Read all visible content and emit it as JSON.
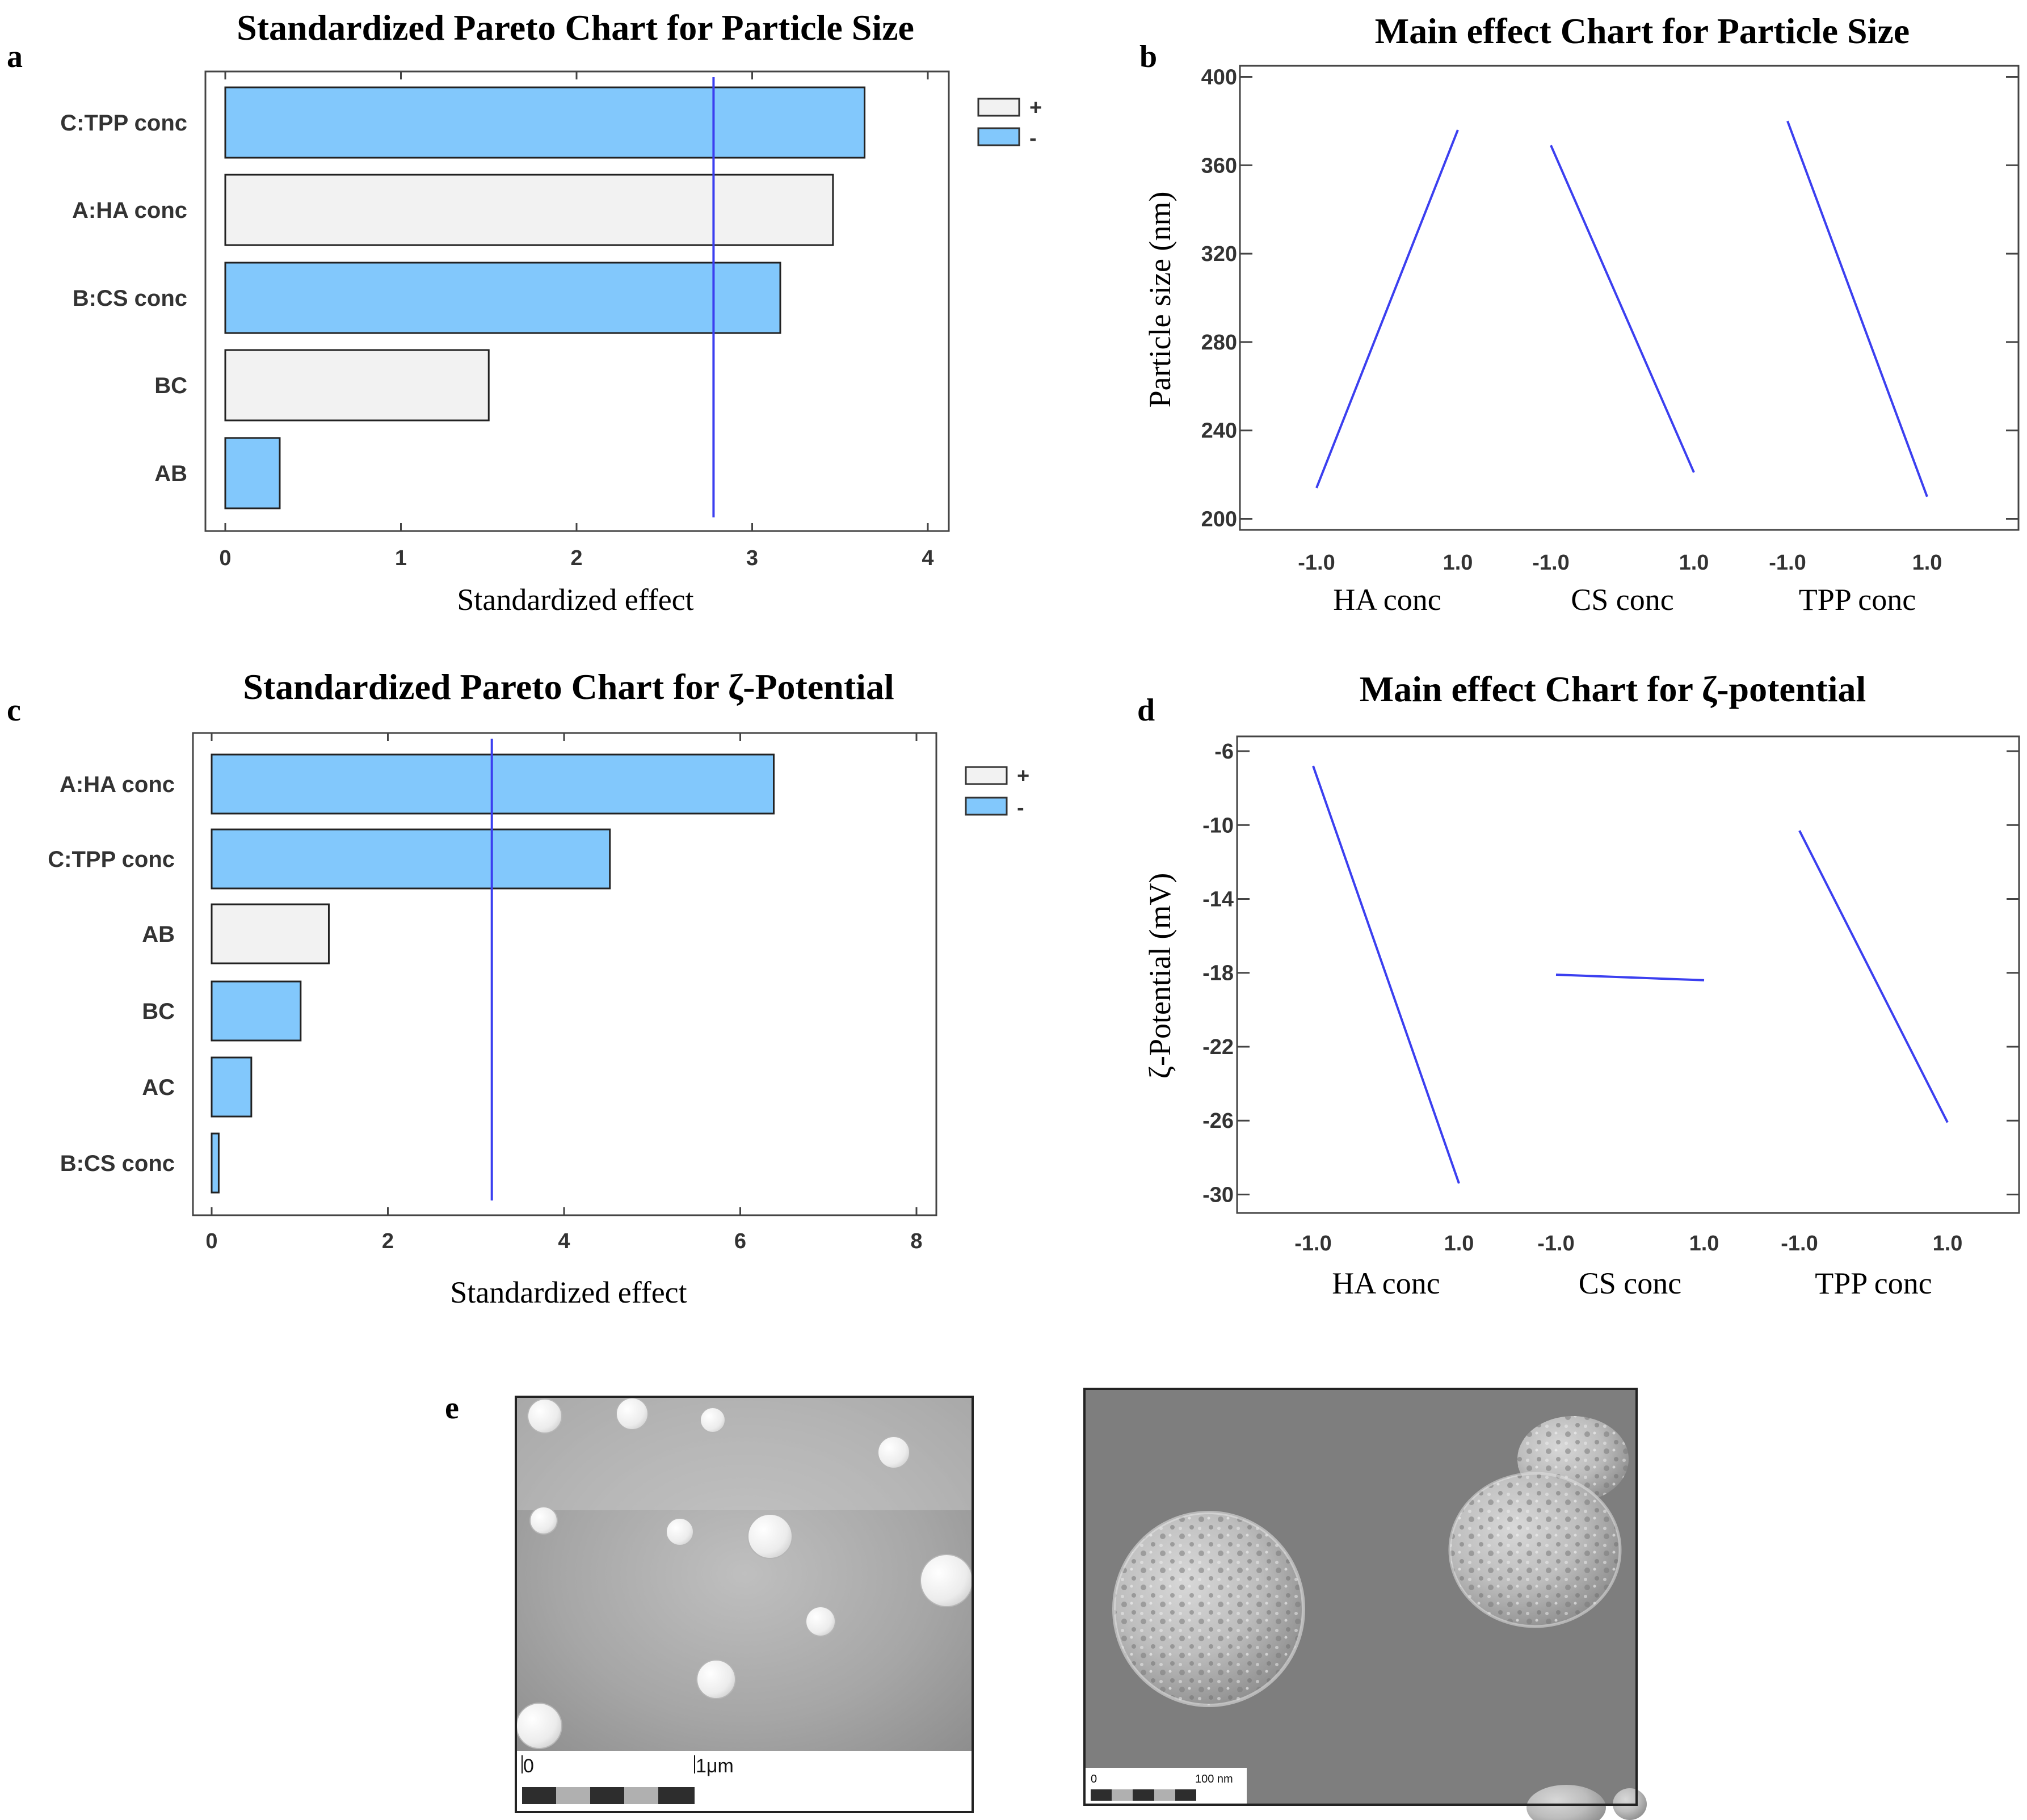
{
  "colors": {
    "neg": "#82c8fc",
    "pos": "#f2f2f2",
    "line": "#3b3ff0",
    "axis": "#444444"
  },
  "panel_labels": {
    "a": "a",
    "b": "b",
    "c": "c",
    "d": "d",
    "e": "e"
  },
  "chart_data": [
    {
      "id": "a",
      "type": "bar",
      "title": "Standardized Pareto Chart for Particle Size",
      "xlabel": "Standardized effect",
      "xlim": [
        0,
        4
      ],
      "xticks": [
        "0",
        "1",
        "2",
        "3",
        "4"
      ],
      "reference_line": 2.78,
      "categories": [
        "C:TPP conc",
        "A:HA conc",
        "B:CS conc",
        "BC",
        "AB"
      ],
      "values": [
        3.64,
        3.46,
        3.16,
        1.5,
        0.31
      ],
      "signs": [
        "-",
        "+",
        "-",
        "+",
        "-"
      ],
      "legend": [
        {
          "sign": "+",
          "label": "+"
        },
        {
          "sign": "-",
          "label": "-"
        }
      ]
    },
    {
      "id": "b",
      "type": "line",
      "title": "Main effect Chart for Particle Size",
      "ylabel": "Particle size (nm)",
      "ylim": [
        195,
        405
      ],
      "yticks": [
        "200",
        "240",
        "280",
        "320",
        "360",
        "400"
      ],
      "factors": [
        {
          "name": "HA conc",
          "x_labels": [
            "-1.0",
            "1.0"
          ],
          "values": [
            214,
            376
          ]
        },
        {
          "name": "CS conc",
          "x_labels": [
            "-1.0",
            "1.0"
          ],
          "values": [
            369,
            221
          ]
        },
        {
          "name": "TPP conc",
          "x_labels": [
            "-1.0",
            "1.0"
          ],
          "values": [
            380,
            210
          ]
        }
      ]
    },
    {
      "id": "c",
      "type": "bar",
      "title": "Standardized Pareto Chart for ζ-Potential",
      "xlabel": "Standardized effect",
      "xlim": [
        0,
        8
      ],
      "xticks": [
        "0",
        "2",
        "4",
        "6",
        "8"
      ],
      "reference_line": 3.18,
      "categories": [
        "A:HA conc",
        "C:TPP conc",
        "AB",
        "BC",
        "AC",
        "B:CS conc"
      ],
      "values": [
        6.38,
        4.52,
        1.33,
        1.01,
        0.45,
        0.08
      ],
      "signs": [
        "-",
        "-",
        "+",
        "-",
        "-",
        "-"
      ],
      "legend": [
        {
          "sign": "+",
          "label": "+"
        },
        {
          "sign": "-",
          "label": "-"
        }
      ]
    },
    {
      "id": "d",
      "type": "line",
      "title": "Main effect Chart for ζ-potential",
      "ylabel": "ζ-Potential (mV)",
      "ylim": [
        -31,
        -5.2
      ],
      "yticks": [
        "-6",
        "-10",
        "-14",
        "-18",
        "-22",
        "-26",
        "-30"
      ],
      "factors": [
        {
          "name": "HA conc",
          "x_labels": [
            "-1.0",
            "1.0"
          ],
          "values": [
            -6.8,
            -29.4
          ]
        },
        {
          "name": "CS conc",
          "x_labels": [
            "-1.0",
            "1.0"
          ],
          "values": [
            -18.1,
            -18.4
          ]
        },
        {
          "name": "TPP conc",
          "x_labels": [
            "-1.0",
            "1.0"
          ],
          "values": [
            -10.3,
            -26.1
          ]
        }
      ]
    }
  ],
  "micrographs": {
    "tem_scale": {
      "zero": "0",
      "value": "1μm"
    },
    "sem_scale": {
      "zero": "0",
      "value": "100 nm"
    }
  }
}
